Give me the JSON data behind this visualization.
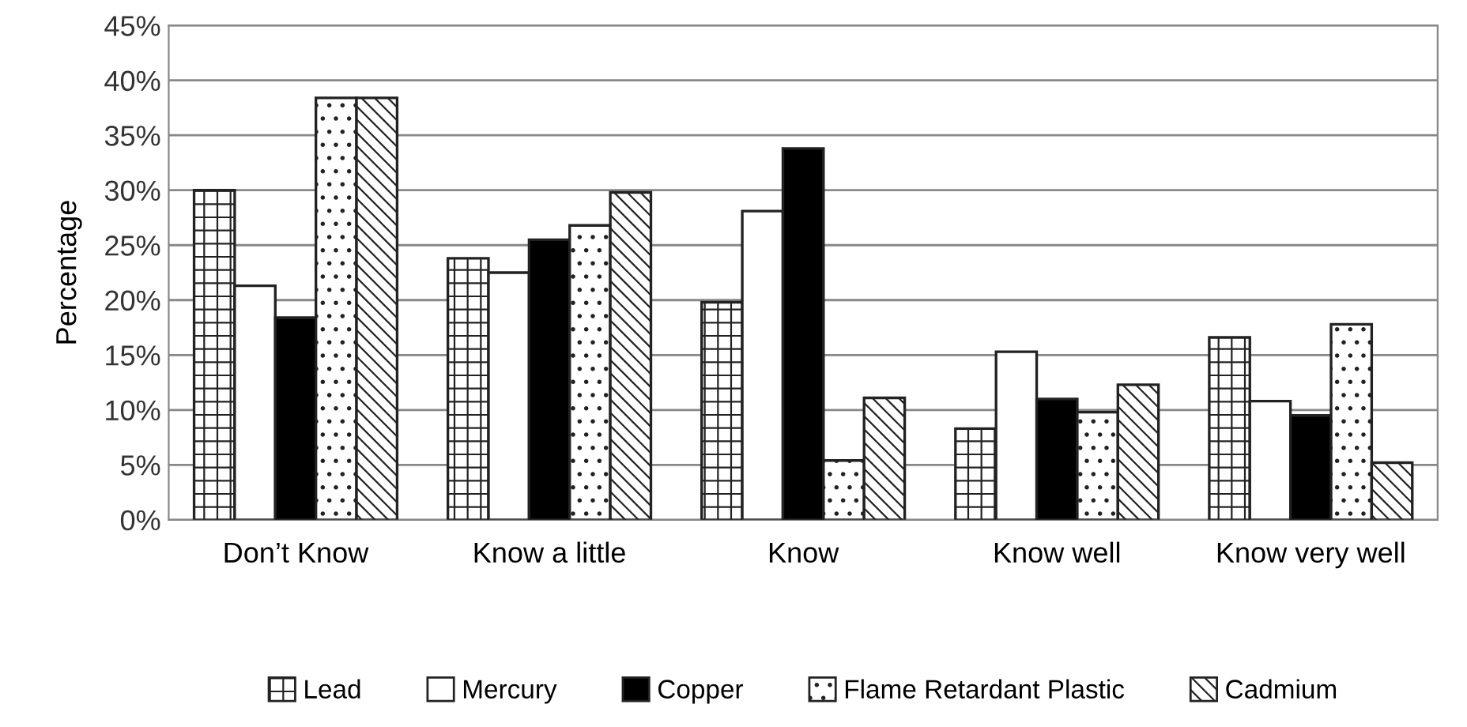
{
  "chart_data": {
    "type": "bar",
    "ylabel": "Percentage",
    "categories": [
      "Don’t Know",
      "Know a little",
      "Know",
      "Know well",
      "Know very well"
    ],
    "series": [
      {
        "name": "Lead",
        "color": "#ffffff",
        "values": [
          30,
          23.8,
          19.8,
          8.3,
          16.6
        ]
      },
      {
        "name": "Mercury",
        "color": "#ffffff",
        "values": [
          21.3,
          22.5,
          28.1,
          15.3,
          10.8
        ]
      },
      {
        "name": "Copper",
        "color": "#000000",
        "values": [
          18.4,
          25.5,
          33.8,
          11.0,
          9.5
        ]
      },
      {
        "name": "Flame Retardant Plastic",
        "color": "#ffffff",
        "values": [
          38.4,
          26.8,
          5.4,
          9.8,
          17.8
        ]
      },
      {
        "name": "Cadmium",
        "color": "#ffffff",
        "values": [
          38.4,
          29.8,
          11.1,
          12.3,
          5.2
        ]
      }
    ],
    "ylim": [
      0,
      45
    ],
    "yticks": [
      {
        "value": 0,
        "label": "0%"
      },
      {
        "value": 5,
        "label": "5%"
      },
      {
        "value": 10,
        "label": "10%"
      },
      {
        "value": 15,
        "label": "15%"
      },
      {
        "value": 20,
        "label": "20%"
      },
      {
        "value": 25,
        "label": "25%"
      },
      {
        "value": 30,
        "label": "30%"
      },
      {
        "value": 35,
        "label": "35%"
      },
      {
        "value": 40,
        "label": "40%"
      },
      {
        "value": 45,
        "label": "45%"
      }
    ],
    "grid": "y",
    "legend": "bottom"
  }
}
